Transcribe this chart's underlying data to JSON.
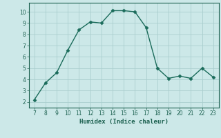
{
  "x": [
    7,
    8,
    9,
    10,
    11,
    12,
    13,
    14,
    15,
    16,
    17,
    18,
    19,
    20,
    21,
    22,
    23
  ],
  "y": [
    2.2,
    3.7,
    4.6,
    6.6,
    8.4,
    9.1,
    9.0,
    10.1,
    10.1,
    10.0,
    8.6,
    5.0,
    4.1,
    4.3,
    4.1,
    5.0,
    4.2
  ],
  "line_color": "#1a6b5a",
  "marker_color": "#1a6b5a",
  "bg_color": "#cce8e8",
  "grid_color": "#aacece",
  "xlabel": "Humidex (Indice chaleur)",
  "xlim": [
    6.5,
    23.5
  ],
  "ylim": [
    1.5,
    10.8
  ],
  "xticks": [
    7,
    8,
    9,
    10,
    11,
    12,
    13,
    14,
    15,
    16,
    17,
    18,
    19,
    20,
    21,
    22,
    23
  ],
  "yticks": [
    2,
    3,
    4,
    5,
    6,
    7,
    8,
    9,
    10
  ],
  "tick_color": "#1a5f4e",
  "axis_label_color": "#1a5f4e"
}
